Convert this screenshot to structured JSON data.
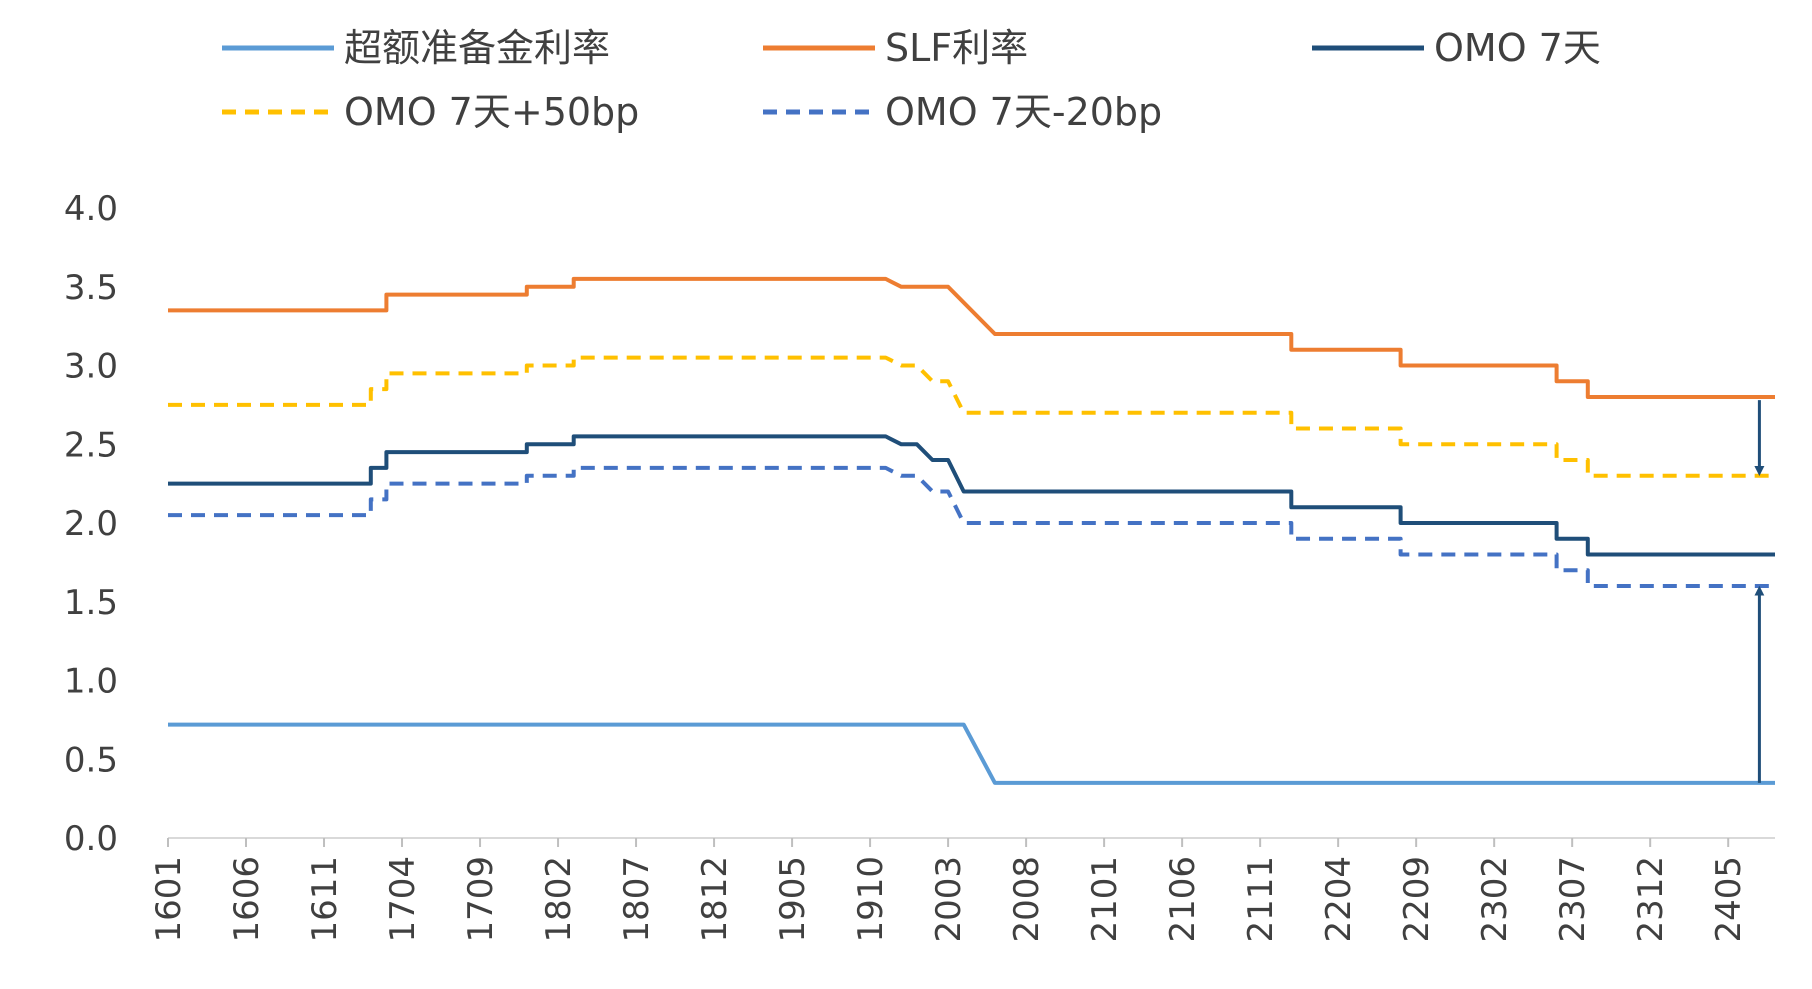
{
  "chart_data": {
    "type": "line",
    "title": "",
    "xlabel": "",
    "ylabel": "",
    "ylim": [
      0,
      4.0
    ],
    "yticks": [
      "0.0",
      "0.5",
      "1.0",
      "1.5",
      "2.0",
      "2.5",
      "3.0",
      "3.5",
      "4.0"
    ],
    "xticks": [
      "1601",
      "1606",
      "1611",
      "1704",
      "1709",
      "1802",
      "1807",
      "1812",
      "1905",
      "1910",
      "2003",
      "2008",
      "2101",
      "2106",
      "2111",
      "2204",
      "2209",
      "2302",
      "2307",
      "2312",
      "2405"
    ],
    "x_start": "1601",
    "x_end": "2408",
    "legend_position": "top",
    "series": [
      {
        "name": "超额准备金利率",
        "color": "#5b9bd5",
        "style": "solid",
        "points": [
          [
            "1601",
            0.72
          ],
          [
            "2004",
            0.72
          ],
          [
            "2006",
            0.35
          ],
          [
            "2408",
            0.35
          ]
        ]
      },
      {
        "name": "SLF利率",
        "color": "#ed7d31",
        "style": "solid",
        "points": [
          [
            "1601",
            3.35
          ],
          [
            "1703",
            3.35
          ],
          [
            "1703",
            3.45
          ],
          [
            "1712",
            3.45
          ],
          [
            "1712",
            3.5
          ],
          [
            "1803",
            3.5
          ],
          [
            "1803",
            3.55
          ],
          [
            "1911",
            3.55
          ],
          [
            "1912",
            3.5
          ],
          [
            "2003",
            3.5
          ],
          [
            "2006",
            3.2
          ],
          [
            "2201",
            3.2
          ],
          [
            "2201",
            3.1
          ],
          [
            "2208",
            3.1
          ],
          [
            "2208",
            3.0
          ],
          [
            "2306",
            3.0
          ],
          [
            "2306",
            2.9
          ],
          [
            "2308",
            2.9
          ],
          [
            "2308",
            2.8
          ],
          [
            "2408",
            2.8
          ]
        ]
      },
      {
        "name": "OMO 7天",
        "color": "#1f4e79",
        "style": "solid",
        "points": [
          [
            "1601",
            2.25
          ],
          [
            "1702",
            2.25
          ],
          [
            "1702",
            2.35
          ],
          [
            "1703",
            2.35
          ],
          [
            "1703",
            2.45
          ],
          [
            "1712",
            2.45
          ],
          [
            "1712",
            2.5
          ],
          [
            "1803",
            2.5
          ],
          [
            "1803",
            2.55
          ],
          [
            "1911",
            2.55
          ],
          [
            "1912",
            2.5
          ],
          [
            "2001",
            2.5
          ],
          [
            "2002",
            2.4
          ],
          [
            "2003",
            2.4
          ],
          [
            "2004",
            2.2
          ],
          [
            "2201",
            2.2
          ],
          [
            "2201",
            2.1
          ],
          [
            "2208",
            2.1
          ],
          [
            "2208",
            2.0
          ],
          [
            "2306",
            2.0
          ],
          [
            "2306",
            1.9
          ],
          [
            "2308",
            1.9
          ],
          [
            "2308",
            1.8
          ],
          [
            "2408",
            1.8
          ]
        ]
      },
      {
        "name": "OMO 7天+50bp",
        "color": "#ffc000",
        "style": "dashed",
        "points": [
          [
            "1601",
            2.75
          ],
          [
            "1702",
            2.75
          ],
          [
            "1702",
            2.85
          ],
          [
            "1703",
            2.85
          ],
          [
            "1703",
            2.95
          ],
          [
            "1712",
            2.95
          ],
          [
            "1712",
            3.0
          ],
          [
            "1803",
            3.0
          ],
          [
            "1803",
            3.05
          ],
          [
            "1911",
            3.05
          ],
          [
            "1912",
            3.0
          ],
          [
            "2001",
            3.0
          ],
          [
            "2002",
            2.9
          ],
          [
            "2003",
            2.9
          ],
          [
            "2004",
            2.7
          ],
          [
            "2201",
            2.7
          ],
          [
            "2201",
            2.6
          ],
          [
            "2208",
            2.6
          ],
          [
            "2208",
            2.5
          ],
          [
            "2306",
            2.5
          ],
          [
            "2306",
            2.4
          ],
          [
            "2308",
            2.4
          ],
          [
            "2308",
            2.3
          ],
          [
            "2408",
            2.3
          ]
        ]
      },
      {
        "name": "OMO 7天-20bp",
        "color": "#4472c4",
        "style": "dashed",
        "points": [
          [
            "1601",
            2.05
          ],
          [
            "1702",
            2.05
          ],
          [
            "1702",
            2.15
          ],
          [
            "1703",
            2.15
          ],
          [
            "1703",
            2.25
          ],
          [
            "1712",
            2.25
          ],
          [
            "1712",
            2.3
          ],
          [
            "1803",
            2.3
          ],
          [
            "1803",
            2.35
          ],
          [
            "1911",
            2.35
          ],
          [
            "1912",
            2.3
          ],
          [
            "2001",
            2.3
          ],
          [
            "2002",
            2.2
          ],
          [
            "2003",
            2.2
          ],
          [
            "2004",
            2.0
          ],
          [
            "2201",
            2.0
          ],
          [
            "2201",
            1.9
          ],
          [
            "2208",
            1.9
          ],
          [
            "2208",
            1.8
          ],
          [
            "2306",
            1.8
          ],
          [
            "2306",
            1.7
          ],
          [
            "2308",
            1.7
          ],
          [
            "2308",
            1.6
          ],
          [
            "2408",
            1.6
          ]
        ]
      }
    ],
    "annotations": [
      {
        "type": "arrow",
        "x": "2407",
        "from": 2.78,
        "to": 2.33,
        "color": "#1f4e79"
      },
      {
        "type": "arrow",
        "x": "2407",
        "from": 0.35,
        "to": 1.57,
        "color": "#1f4e79"
      }
    ]
  }
}
